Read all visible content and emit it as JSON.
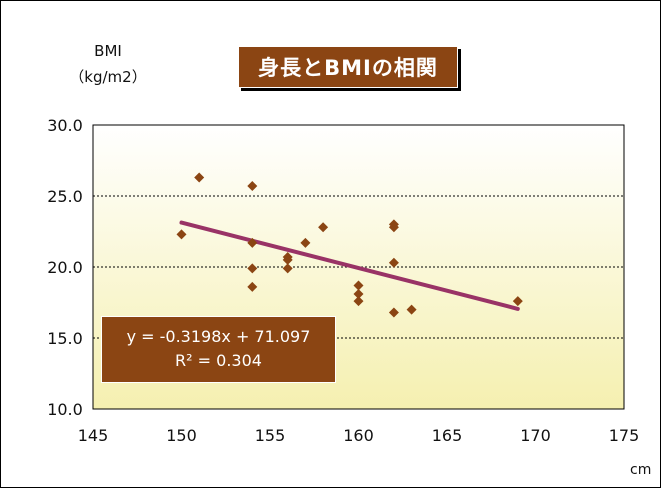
{
  "chart_data": {
    "type": "scatter",
    "title": "身長とBMIの相関",
    "ylabel_line1": "BMI",
    "ylabel_line2": "（kg/m2）",
    "xlabel": "cm",
    "xlim": [
      145,
      175
    ],
    "ylim": [
      10.0,
      30.0
    ],
    "x_ticks": [
      "145",
      "150",
      "155",
      "160",
      "165",
      "170",
      "175"
    ],
    "y_ticks": [
      "10.0",
      "15.0",
      "20.0",
      "25.0",
      "30.0"
    ],
    "grid": "horizontal dashed",
    "points": [
      {
        "x": 150,
        "y": 22.3
      },
      {
        "x": 151,
        "y": 26.3
      },
      {
        "x": 154,
        "y": 25.7
      },
      {
        "x": 154,
        "y": 21.7
      },
      {
        "x": 154,
        "y": 19.9
      },
      {
        "x": 154,
        "y": 18.6
      },
      {
        "x": 156,
        "y": 20.7
      },
      {
        "x": 156,
        "y": 20.5
      },
      {
        "x": 156,
        "y": 19.9
      },
      {
        "x": 157,
        "y": 21.7
      },
      {
        "x": 158,
        "y": 22.8
      },
      {
        "x": 160,
        "y": 18.7
      },
      {
        "x": 160,
        "y": 18.1
      },
      {
        "x": 160,
        "y": 17.6
      },
      {
        "x": 162,
        "y": 23.0
      },
      {
        "x": 162,
        "y": 22.8
      },
      {
        "x": 162,
        "y": 20.3
      },
      {
        "x": 162,
        "y": 16.8
      },
      {
        "x": 163,
        "y": 17.0
      },
      {
        "x": 169,
        "y": 17.6
      }
    ],
    "trendline": {
      "slope": -0.3198,
      "intercept": 71.097,
      "equation": "y = -0.3198x + 71.097",
      "r2_label": "R² = 0.304"
    },
    "colors": {
      "marker": "#8b4513",
      "trendline": "#993366",
      "plot_bg_top": "#ffffff",
      "plot_bg_bottom": "#f5f0b0",
      "label_box": "#8b4513"
    }
  }
}
